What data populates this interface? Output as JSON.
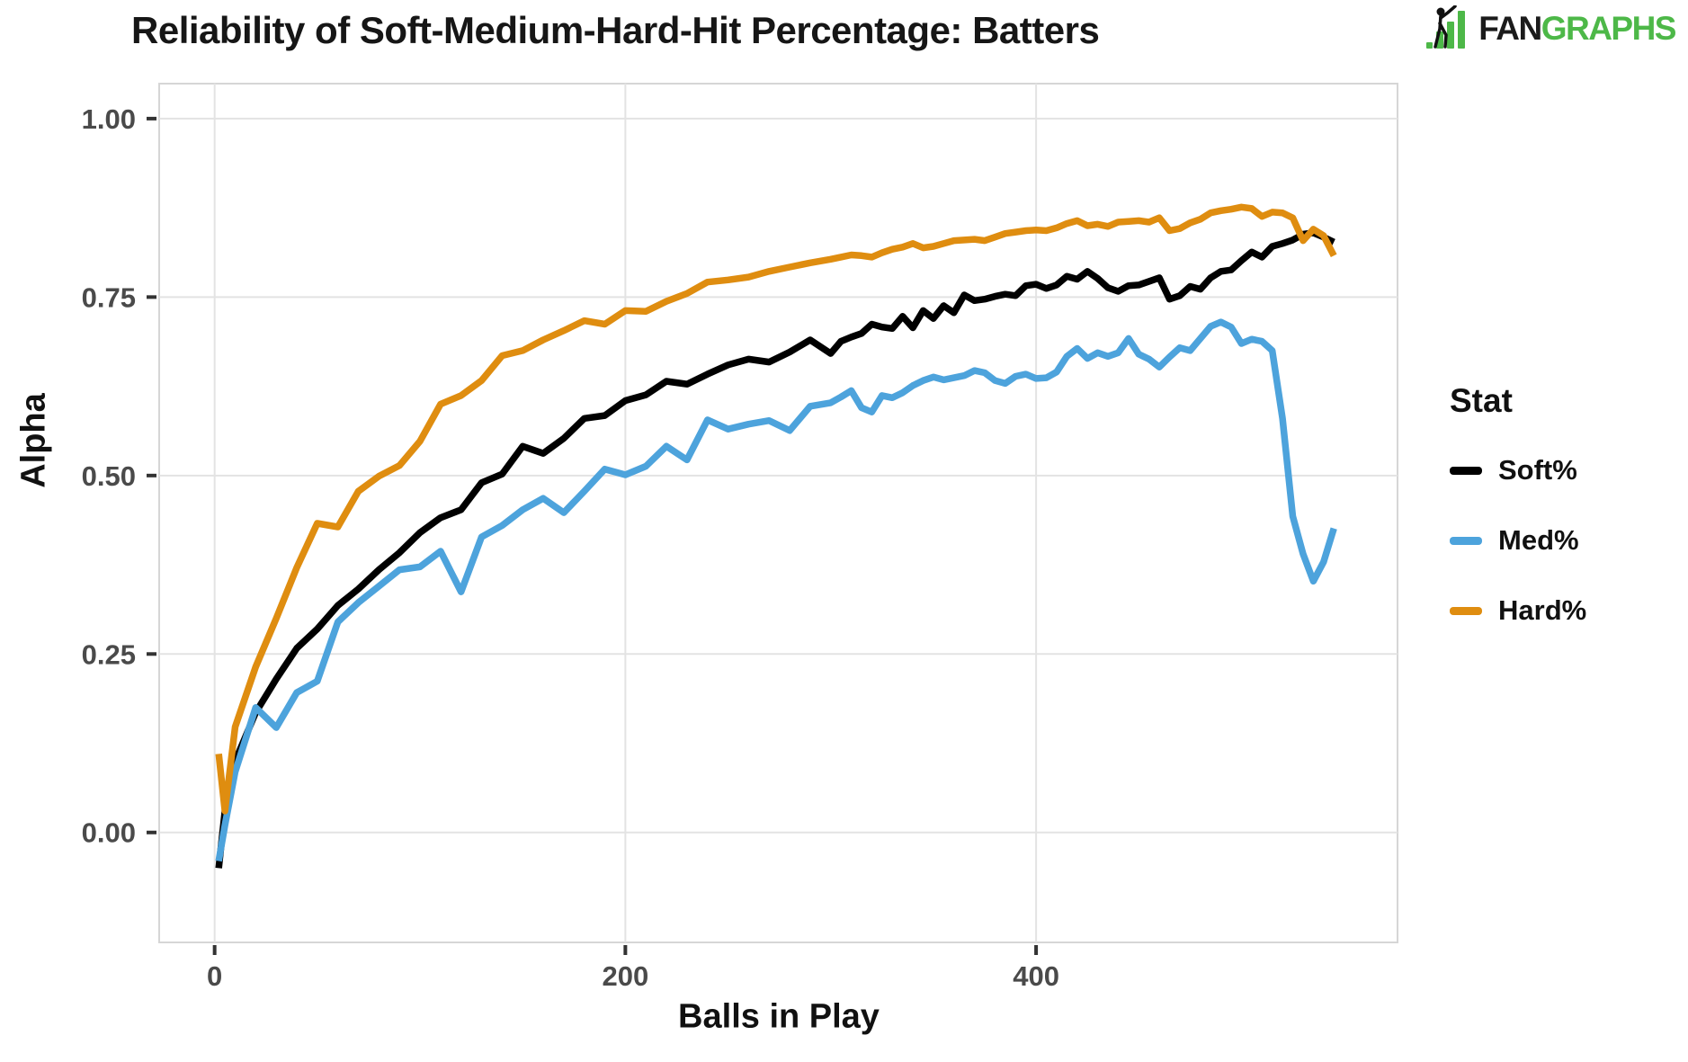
{
  "header": {
    "title": "Reliability of Soft-Medium-Hard-Hit Percentage: Batters",
    "logo": {
      "fan": "FAN",
      "graphs": "GRAPHS",
      "green": "#4DB848"
    }
  },
  "axes": {
    "y_label": "Alpha",
    "x_label": "Balls in Play",
    "y_tick_labels": [
      "1.00",
      "0.75",
      "0.50",
      "0.25",
      "0.00"
    ],
    "y_tick_values": [
      1.0,
      0.75,
      0.5,
      0.25,
      0.0
    ],
    "x_tick_labels": [
      "0",
      "200",
      "400"
    ],
    "x_tick_values": [
      0,
      200,
      400
    ]
  },
  "legend": {
    "title": "Stat",
    "items": [
      {
        "label": "Soft%",
        "color": "#000000"
      },
      {
        "label": "Med%",
        "color": "#4DA3DC"
      },
      {
        "label": "Hard%",
        "color": "#DF8D10"
      }
    ]
  },
  "chart_data": {
    "type": "line",
    "title": "Reliability of Soft-Medium-Hard-Hit Percentage: Batters",
    "xlabel": "Balls in Play",
    "ylabel": "Alpha",
    "x_domain": [
      -27,
      576
    ],
    "y_domain": [
      -0.154,
      1.049
    ],
    "grid": "major-only",
    "legend_position": "right",
    "x": [
      2,
      5,
      10,
      20,
      30,
      40,
      50,
      60,
      70,
      80,
      90,
      100,
      110,
      120,
      130,
      140,
      150,
      160,
      170,
      180,
      190,
      200,
      210,
      220,
      230,
      240,
      250,
      260,
      270,
      280,
      290,
      300,
      305,
      310,
      315,
      320,
      325,
      330,
      335,
      340,
      345,
      350,
      355,
      360,
      365,
      370,
      375,
      380,
      385,
      390,
      395,
      400,
      405,
      410,
      415,
      420,
      425,
      430,
      435,
      440,
      445,
      450,
      455,
      460,
      465,
      470,
      475,
      480,
      485,
      490,
      495,
      500,
      505,
      510,
      515,
      520,
      525,
      530,
      535,
      540,
      545
    ],
    "series": [
      {
        "name": "Soft%",
        "color": "#000000",
        "values": [
          -0.05,
          0.03,
          0.1,
          0.168,
          0.215,
          0.258,
          0.285,
          0.318,
          0.341,
          0.368,
          0.392,
          0.42,
          0.441,
          0.452,
          0.49,
          0.502,
          0.541,
          0.531,
          0.552,
          0.58,
          0.584,
          0.605,
          0.613,
          0.632,
          0.628,
          0.642,
          0.655,
          0.663,
          0.659,
          0.673,
          0.69,
          0.671,
          0.688,
          0.694,
          0.699,
          0.712,
          0.708,
          0.706,
          0.723,
          0.707,
          0.731,
          0.72,
          0.738,
          0.728,
          0.753,
          0.745,
          0.747,
          0.751,
          0.754,
          0.752,
          0.766,
          0.768,
          0.762,
          0.767,
          0.779,
          0.775,
          0.786,
          0.776,
          0.763,
          0.758,
          0.766,
          0.767,
          0.772,
          0.777,
          0.747,
          0.752,
          0.765,
          0.761,
          0.777,
          0.786,
          0.788,
          0.801,
          0.813,
          0.806,
          0.821,
          0.825,
          0.83,
          0.838,
          0.84,
          0.834,
          0.827
        ]
      },
      {
        "name": "Med%",
        "color": "#4DA3DC",
        "values": [
          -0.04,
          0.01,
          0.085,
          0.175,
          0.147,
          0.196,
          0.212,
          0.295,
          0.322,
          0.345,
          0.368,
          0.372,
          0.394,
          0.337,
          0.414,
          0.43,
          0.452,
          0.468,
          0.448,
          0.478,
          0.509,
          0.501,
          0.513,
          0.541,
          0.522,
          0.578,
          0.565,
          0.572,
          0.577,
          0.563,
          0.597,
          0.602,
          0.61,
          0.619,
          0.595,
          0.589,
          0.612,
          0.609,
          0.616,
          0.626,
          0.633,
          0.638,
          0.634,
          0.637,
          0.64,
          0.647,
          0.644,
          0.633,
          0.629,
          0.639,
          0.642,
          0.636,
          0.637,
          0.645,
          0.667,
          0.678,
          0.664,
          0.672,
          0.667,
          0.672,
          0.692,
          0.67,
          0.663,
          0.652,
          0.666,
          0.679,
          0.675,
          0.692,
          0.709,
          0.715,
          0.708,
          0.685,
          0.691,
          0.688,
          0.675,
          0.58,
          0.443,
          0.39,
          0.352,
          0.379,
          0.426
        ]
      },
      {
        "name": "Hard%",
        "color": "#DF8D10",
        "values": [
          0.11,
          0.03,
          0.148,
          0.232,
          0.3,
          0.371,
          0.433,
          0.428,
          0.478,
          0.499,
          0.514,
          0.548,
          0.6,
          0.612,
          0.633,
          0.668,
          0.675,
          0.69,
          0.703,
          0.717,
          0.712,
          0.731,
          0.73,
          0.744,
          0.755,
          0.771,
          0.774,
          0.778,
          0.786,
          0.792,
          0.798,
          0.803,
          0.806,
          0.809,
          0.808,
          0.806,
          0.812,
          0.817,
          0.82,
          0.825,
          0.819,
          0.821,
          0.825,
          0.829,
          0.83,
          0.831,
          0.829,
          0.834,
          0.839,
          0.841,
          0.843,
          0.844,
          0.843,
          0.847,
          0.853,
          0.857,
          0.85,
          0.852,
          0.849,
          0.855,
          0.856,
          0.857,
          0.855,
          0.861,
          0.843,
          0.846,
          0.854,
          0.859,
          0.868,
          0.871,
          0.873,
          0.876,
          0.874,
          0.863,
          0.869,
          0.868,
          0.861,
          0.829,
          0.845,
          0.836,
          0.808
        ]
      }
    ]
  }
}
